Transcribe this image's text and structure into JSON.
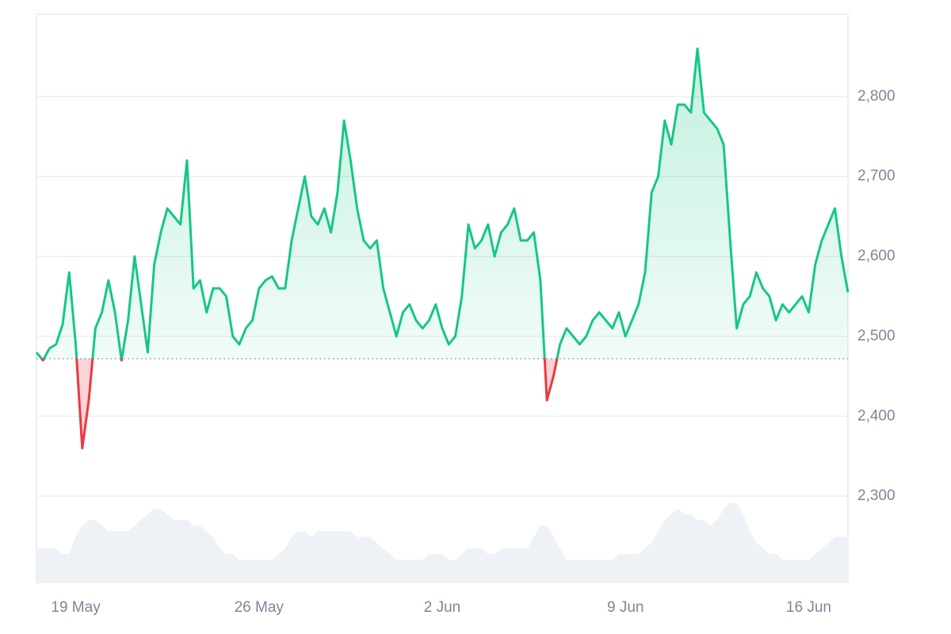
{
  "chart_data": {
    "type": "line",
    "categories": [
      null,
      null,
      null,
      null,
      null,
      null,
      "19 May",
      null,
      null,
      null,
      null,
      null,
      null,
      null,
      null,
      null,
      null,
      null,
      null,
      null,
      null,
      null,
      null,
      null,
      null,
      null,
      null,
      null,
      null,
      null,
      null,
      null,
      null,
      null,
      "26 May",
      null,
      null,
      null,
      null,
      null,
      null,
      null,
      null,
      null,
      null,
      null,
      null,
      null,
      null,
      null,
      null,
      null,
      null,
      null,
      null,
      null,
      null,
      null,
      null,
      null,
      null,
      null,
      "2 Jun",
      null,
      null,
      null,
      null,
      null,
      null,
      null,
      null,
      null,
      null,
      null,
      null,
      null,
      null,
      null,
      null,
      null,
      null,
      null,
      null,
      null,
      null,
      null,
      null,
      null,
      null,
      null,
      "9 Jun",
      null,
      null,
      null,
      null,
      null,
      null,
      null,
      null,
      null,
      null,
      null,
      null,
      null,
      null,
      null,
      null,
      null,
      null,
      null,
      null,
      null,
      null,
      null,
      null,
      null,
      null,
      null,
      "16 Jun",
      null,
      null,
      null,
      null,
      null,
      null
    ],
    "series": [
      {
        "values": [
          2480,
          2470,
          2485,
          2490,
          2515,
          2580,
          2490,
          2360,
          2420,
          2510,
          2530,
          2570,
          2530,
          2470,
          2520,
          2600,
          2540,
          2480,
          2590,
          2630,
          2660,
          2650,
          2640,
          2720,
          2560,
          2570,
          2530,
          2560,
          2560,
          2550,
          2500,
          2490,
          2510,
          2520,
          2560,
          2570,
          2575,
          2560,
          2560,
          2620,
          2660,
          2700,
          2650,
          2640,
          2660,
          2630,
          2680,
          2770,
          2720,
          2660,
          2620,
          2610,
          2620,
          2560,
          2530,
          2500,
          2530,
          2540,
          2520,
          2510,
          2520,
          2540,
          2510,
          2490,
          2500,
          2550,
          2640,
          2610,
          2620,
          2640,
          2600,
          2630,
          2640,
          2660,
          2620,
          2620,
          2630,
          2570,
          2420,
          2450,
          2490,
          2510,
          2500,
          2490,
          2500,
          2520,
          2530,
          2520,
          2510,
          2530,
          2500,
          2520,
          2540,
          2580,
          2680,
          2700,
          2770,
          2740,
          2790,
          2790,
          2780,
          2860,
          2780,
          2770,
          2760,
          2740,
          2620,
          2510,
          2540,
          2550,
          2580,
          2560,
          2550,
          2520,
          2540,
          2530,
          2540,
          2550,
          2530,
          2590,
          2620,
          2640,
          2660,
          2600,
          2555
        ],
        "color": "#16c784",
        "below_color": "#ea3943"
      },
      {
        "type": "area",
        "axis": "y2",
        "color": "#eef1f5",
        "values": [
          6,
          6,
          6,
          6,
          5,
          5,
          8,
          10,
          11,
          11,
          10,
          9,
          9,
          9,
          9,
          10,
          11,
          12,
          13,
          13,
          12,
          11,
          11,
          11,
          10,
          10,
          9,
          8,
          6,
          5,
          5,
          4,
          4,
          4,
          4,
          4,
          4,
          5,
          6,
          8,
          9,
          9,
          8,
          9,
          9,
          9,
          9,
          9,
          9,
          8,
          8,
          8,
          7,
          6,
          5,
          4,
          4,
          4,
          4,
          4,
          5,
          5,
          5,
          4,
          4,
          5,
          6,
          6,
          6,
          5,
          5,
          6,
          6,
          6,
          6,
          6,
          8,
          10,
          10,
          8,
          6,
          4,
          4,
          4,
          4,
          4,
          4,
          4,
          4,
          5,
          5,
          5,
          5,
          6,
          7,
          9,
          11,
          12,
          13,
          12,
          12,
          11,
          11,
          10,
          11,
          13,
          14,
          14,
          12,
          9,
          7,
          6,
          5,
          5,
          4,
          4,
          4,
          4,
          4,
          5,
          6,
          7,
          8,
          8,
          8
        ]
      }
    ],
    "baseline": 2472,
    "ylim": [
      2192,
      2903
    ],
    "yticks": [
      {
        "value": 2300,
        "label": "2,300"
      },
      {
        "value": 2400,
        "label": "2,400"
      },
      {
        "value": 2500,
        "label": "2,500"
      },
      {
        "value": 2600,
        "label": "2,600"
      },
      {
        "value": 2700,
        "label": "2,700"
      },
      {
        "value": 2800,
        "label": "2,800"
      }
    ],
    "y2lim": [
      0,
      100
    ],
    "grid": true
  }
}
